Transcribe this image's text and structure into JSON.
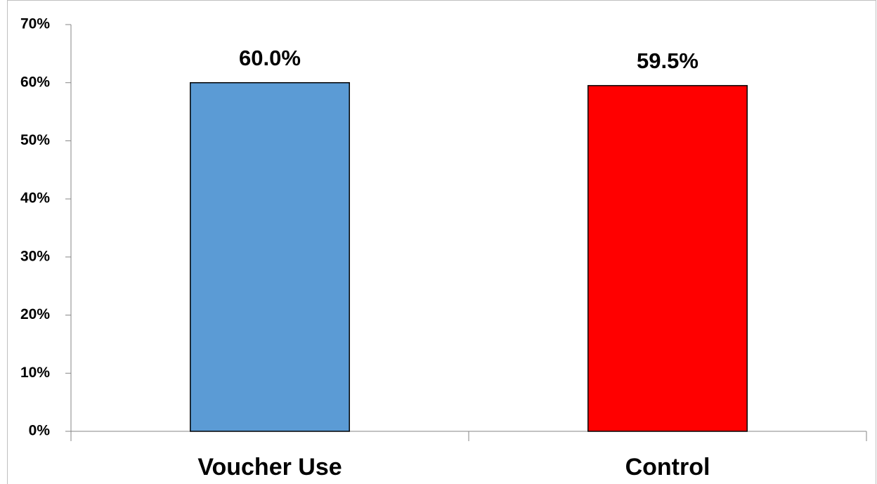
{
  "chart_data": {
    "type": "bar",
    "categories": [
      "Voucher Use",
      "Control"
    ],
    "values": [
      60.0,
      59.5
    ],
    "value_labels": [
      "60.0%",
      "59.5%"
    ],
    "colors": [
      "#5b9bd5",
      "#ff0000"
    ],
    "ylim": [
      0,
      70
    ],
    "yticks": [
      {
        "value": 0,
        "label": "0%"
      },
      {
        "value": 10,
        "label": "10%"
      },
      {
        "value": 20,
        "label": "20%"
      },
      {
        "value": 30,
        "label": "30%"
      },
      {
        "value": 40,
        "label": "40%"
      },
      {
        "value": 50,
        "label": "50%"
      },
      {
        "value": 60,
        "label": "60%"
      },
      {
        "value": 70,
        "label": "70%"
      }
    ]
  }
}
